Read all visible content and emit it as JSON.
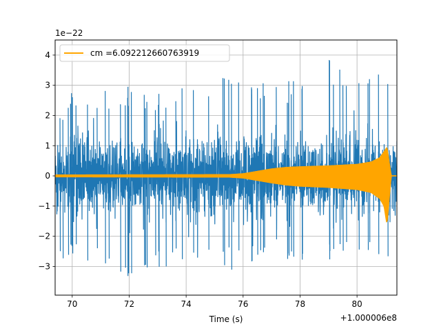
{
  "chart_data": {
    "type": "line",
    "title": "",
    "xlabel": "Time (s)",
    "ylabel": "",
    "x_offset_label": "+1.000006e8",
    "y_scale_label": "1e−22",
    "xlim": [
      69.4,
      81.4
    ],
    "ylim": [
      -3.95,
      4.5
    ],
    "xticks": [
      70,
      72,
      74,
      76,
      78,
      80
    ],
    "xtick_labels": [
      "70",
      "72",
      "74",
      "76",
      "78",
      "80"
    ],
    "yticks": [
      -3,
      -2,
      -1,
      0,
      1,
      2,
      3,
      4
    ],
    "ytick_labels": [
      "−3",
      "−2",
      "−1",
      "0",
      "1",
      "2",
      "3",
      "4"
    ],
    "grid": true,
    "legend_position": "upper-left",
    "series": [
      {
        "kind": "noise-strain",
        "color": "#1f77b4",
        "x_range": [
          69.4,
          81.4
        ],
        "typical_amplitude": 2.0,
        "envelope_x": [
          69.4,
          70.0,
          71.0,
          72.0,
          73.0,
          74.0,
          75.0,
          76.0,
          77.0,
          78.0,
          79.0,
          80.0,
          81.0,
          81.4
        ],
        "envelope_upper": [
          1.7,
          2.8,
          2.9,
          3.0,
          2.8,
          3.3,
          3.4,
          3.6,
          3.2,
          3.2,
          4.1,
          3.2,
          3.5,
          2.9
        ],
        "envelope_lower": [
          -2.9,
          -2.7,
          -3.0,
          -3.5,
          -3.1,
          -2.8,
          -2.9,
          -3.3,
          -2.8,
          -2.8,
          -2.8,
          -2.8,
          -2.8,
          -2.6
        ]
      },
      {
        "name": "cm =6.092212660763919",
        "kind": "chirp-template",
        "color": "#ffa500",
        "env_x": [
          69.4,
          75.5,
          76.0,
          76.5,
          77.0,
          77.5,
          78.0,
          79.0,
          80.0,
          80.5,
          80.8,
          80.95,
          81.05,
          81.2,
          81.4
        ],
        "env_upper": [
          0.03,
          0.04,
          0.07,
          0.15,
          0.23,
          0.28,
          0.3,
          0.33,
          0.38,
          0.46,
          0.6,
          0.8,
          0.95,
          0.0,
          0.0
        ],
        "env_lower": [
          -0.03,
          -0.04,
          -0.07,
          -0.15,
          -0.23,
          -0.3,
          -0.34,
          -0.38,
          -0.45,
          -0.55,
          -0.75,
          -1.0,
          -1.6,
          0.0,
          0.0
        ]
      }
    ]
  }
}
